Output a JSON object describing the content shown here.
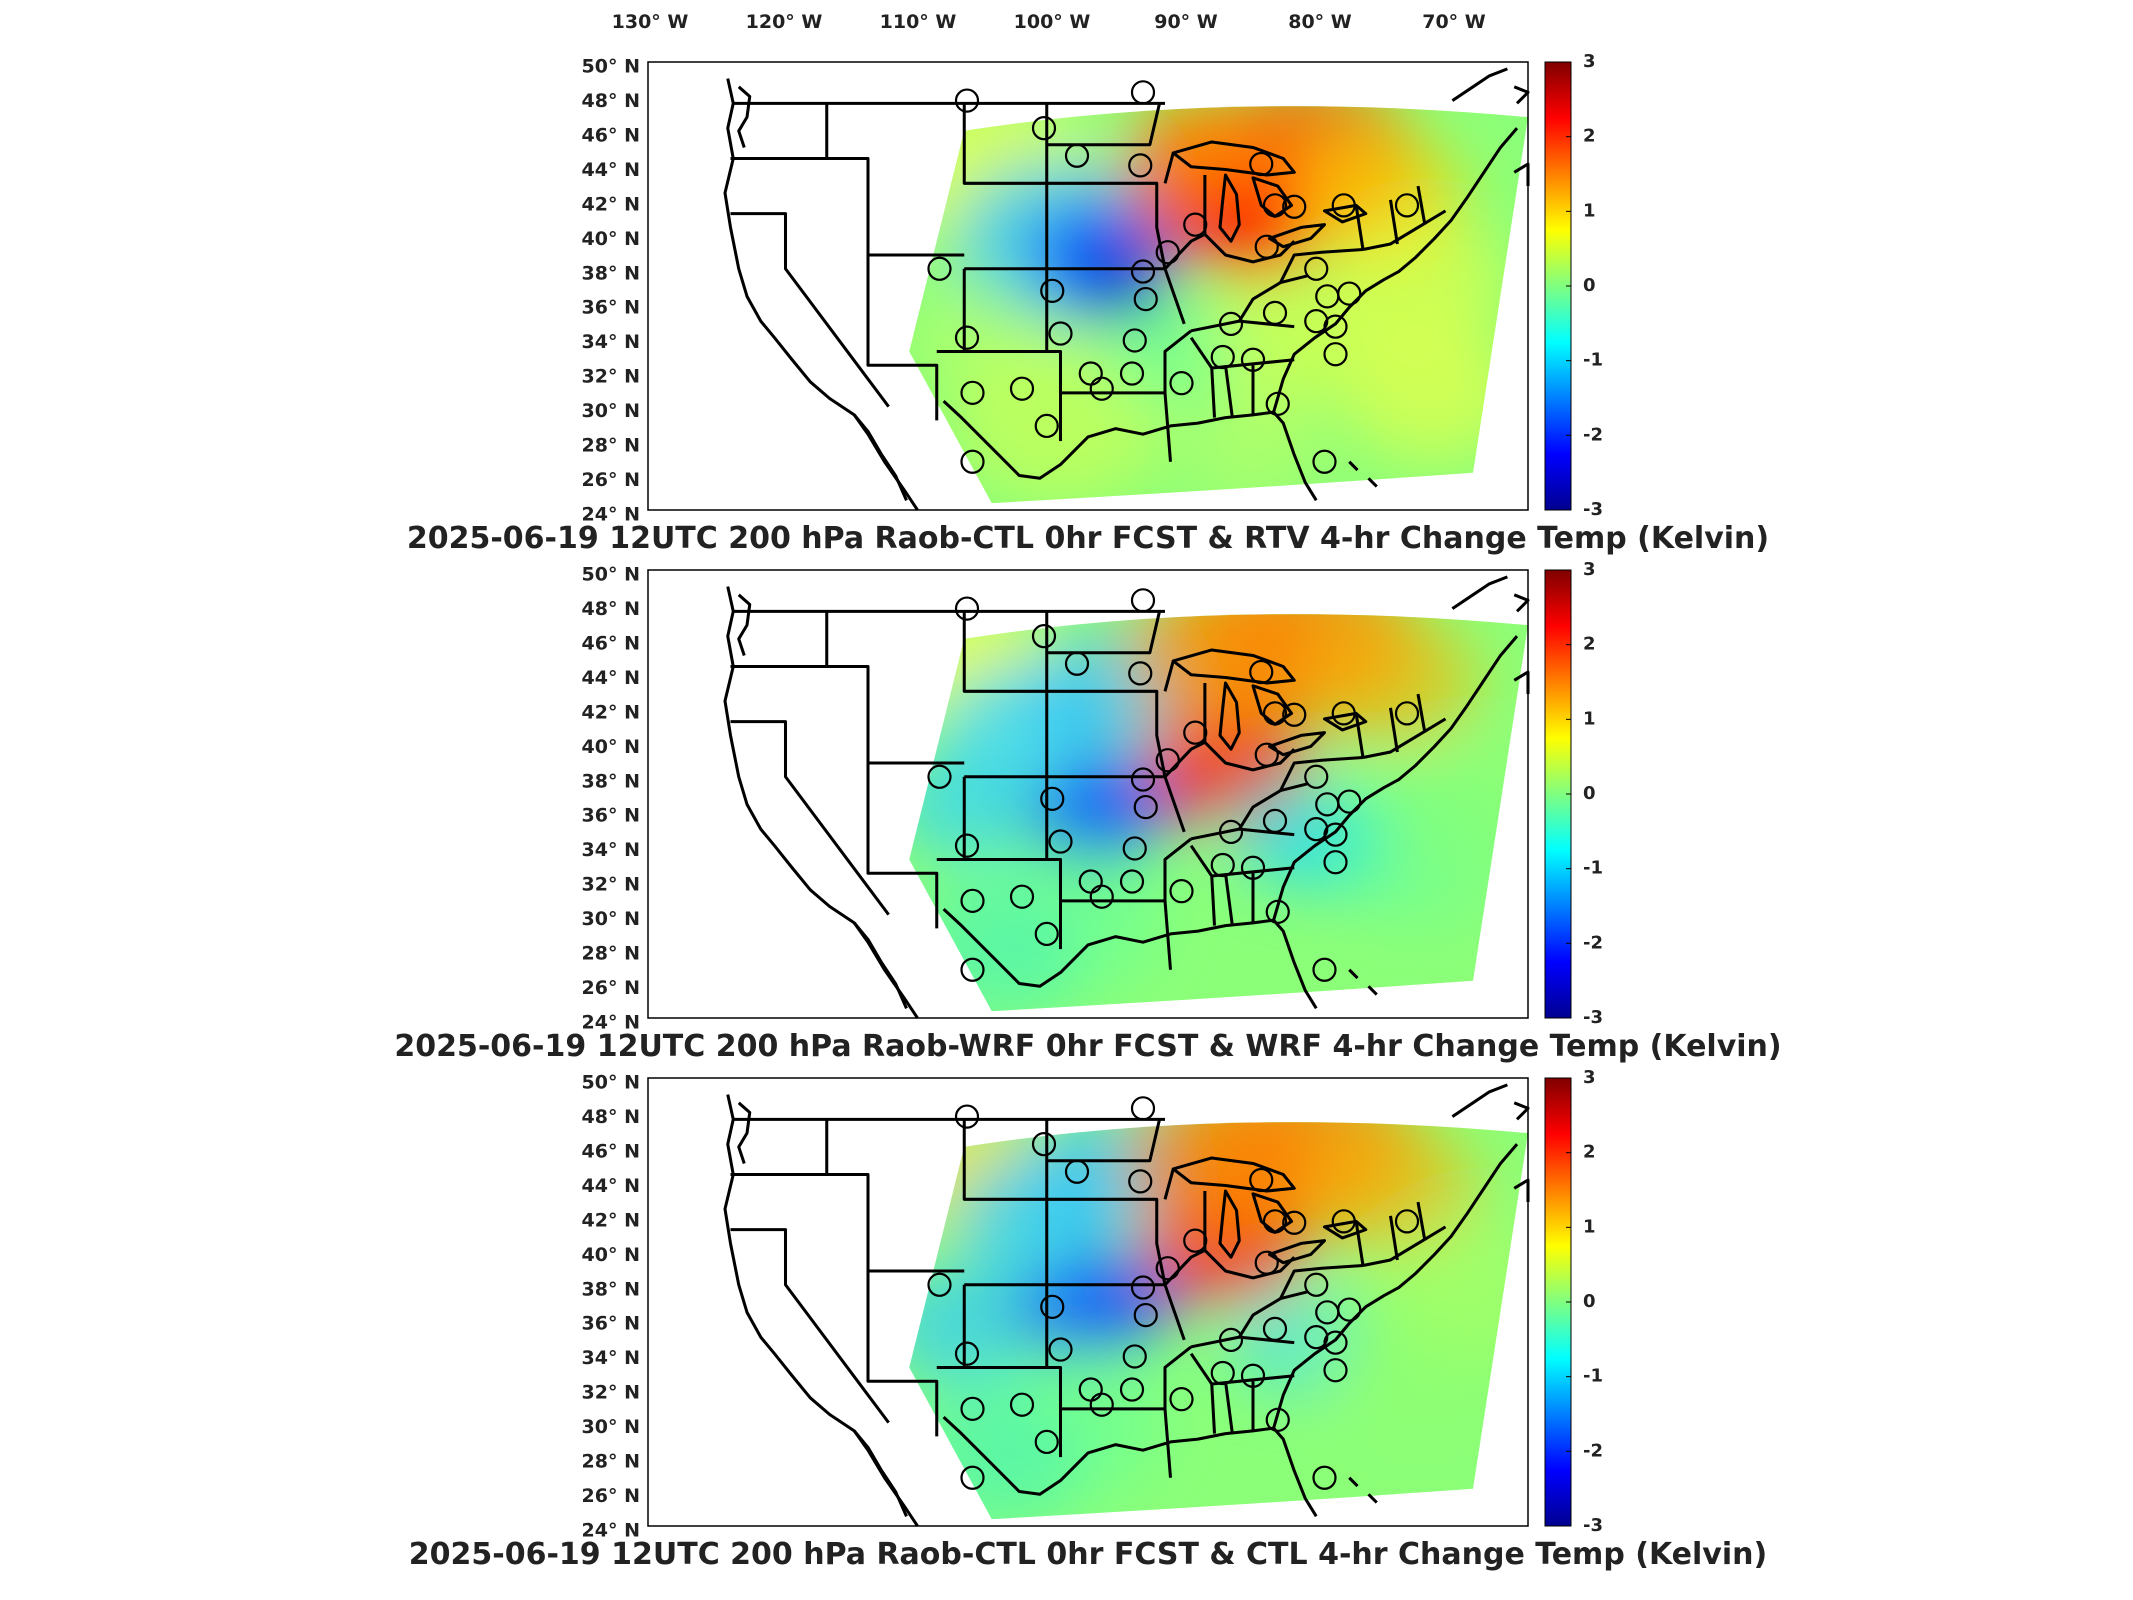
{
  "figure": {
    "lon_ticks": [
      "130° W",
      "120° W",
      "110° W",
      "100° W",
      "90° W",
      "80° W",
      "70° W"
    ],
    "lat_ticks": [
      "50° N",
      "48° N",
      "46° N",
      "44° N",
      "42° N",
      "40° N",
      "38° N",
      "36° N",
      "34° N",
      "32° N",
      "30° N",
      "28° N",
      "26° N",
      "24° N"
    ],
    "colorbar": {
      "ticks": [
        "3",
        "2",
        "1",
        "0",
        "-1",
        "-2",
        "-3"
      ],
      "range": [
        -3,
        3
      ],
      "colormap": [
        "#00008f",
        "#0000ff",
        "#00a0ff",
        "#00ffff",
        "#80ff80",
        "#ffff00",
        "#ff8000",
        "#ff0000",
        "#800000"
      ]
    },
    "marker_style": "circle-outline"
  },
  "panels": [
    {
      "title": "2025-06-19 12UTC 200 hPa Raob-CTL 0hr FCST & RTV 4-hr Change Temp (Kelvin)"
    },
    {
      "title": "2025-06-19 12UTC 200 hPa Raob-WRF 0hr FCST & WRF 4-hr Change Temp (Kelvin)"
    },
    {
      "title": "2025-06-19 12UTC 200 hPa Raob-CTL 0hr FCST & CTL 4-hr Change Temp (Kelvin)"
    }
  ]
}
